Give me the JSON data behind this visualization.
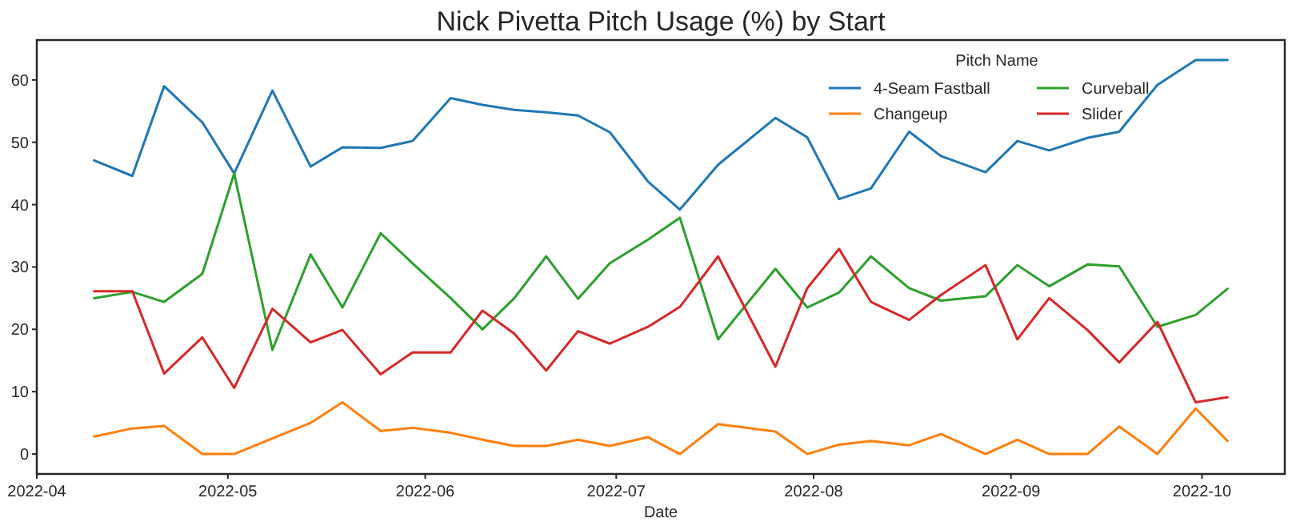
{
  "chart_data": {
    "type": "line",
    "title": "Nick Pivetta Pitch Usage (%) by Start",
    "xlabel": "Date",
    "legend_title": "Pitch Name",
    "legend": "top right",
    "grid": false,
    "x": [
      "2022-04-10",
      "2022-04-16",
      "2022-04-21",
      "2022-04-27",
      "2022-05-02",
      "2022-05-08",
      "2022-05-14",
      "2022-05-19",
      "2022-05-25",
      "2022-05-30",
      "2022-06-05",
      "2022-06-10",
      "2022-06-15",
      "2022-06-20",
      "2022-06-25",
      "2022-06-30",
      "2022-07-06",
      "2022-07-11",
      "2022-07-17",
      "2022-07-26",
      "2022-07-31",
      "2022-08-05",
      "2022-08-10",
      "2022-08-16",
      "2022-08-21",
      "2022-08-28",
      "2022-09-02",
      "2022-09-07",
      "2022-09-13",
      "2022-09-18",
      "2022-09-24",
      "2022-09-30",
      "2022-10-05"
    ],
    "xlim": [
      "2022-04-01",
      "2022-10-14"
    ],
    "xticks": [
      "2022-04",
      "2022-05",
      "2022-06",
      "2022-07",
      "2022-08",
      "2022-09",
      "2022-10"
    ],
    "ylim": [
      -3.2,
      66.4
    ],
    "yticks": [
      0,
      10,
      20,
      30,
      40,
      50,
      60
    ],
    "series": [
      {
        "name": "4-Seam Fastball",
        "color": "#1f77b4",
        "values": [
          47.1,
          44.6,
          59,
          53.2,
          45,
          58.3,
          46.1,
          49.2,
          49.1,
          50.2,
          57.1,
          56,
          55.2,
          54.8,
          54.3,
          51.6,
          43.7,
          39.2,
          46.4,
          53.9,
          50.8,
          40.9,
          42.6,
          51.7,
          47.8,
          45.2,
          50.2,
          48.7,
          50.7,
          51.7,
          59.2,
          63.2,
          63.2
        ]
      },
      {
        "name": "Changeup",
        "color": "#ff7f0e",
        "values": [
          2.8,
          4.1,
          4.5,
          0,
          0,
          2.5,
          5,
          8.3,
          3.7,
          4.2,
          3.4,
          2.3,
          1.3,
          1.3,
          2.3,
          1.3,
          2.7,
          0,
          4.8,
          3.6,
          0,
          1.5,
          2.1,
          1.4,
          3.2,
          0,
          2.3,
          0,
          0,
          4.4,
          0,
          7.3,
          2.1
        ]
      },
      {
        "name": "Curveball",
        "color": "#2ca02c",
        "values": [
          25,
          26,
          24.4,
          28.9,
          45,
          16.7,
          32,
          23.5,
          35.4,
          30.6,
          25,
          20,
          25,
          31.7,
          24.9,
          30.6,
          34.4,
          37.9,
          18.4,
          29.7,
          23.5,
          25.9,
          31.7,
          26.6,
          24.6,
          25.3,
          30.3,
          26.9,
          30.4,
          30.1,
          20.4,
          22.3,
          26.5
        ]
      },
      {
        "name": "Slider",
        "color": "#d62728",
        "values": [
          26.1,
          26.1,
          12.9,
          18.7,
          10.6,
          23.3,
          17.9,
          19.9,
          12.8,
          16.3,
          16.3,
          23,
          19.3,
          13.4,
          19.7,
          17.7,
          20.4,
          23.6,
          31.7,
          14,
          26.6,
          32.9,
          24.4,
          21.5,
          25.5,
          30.3,
          18.4,
          25,
          19.9,
          14.7,
          21.2,
          8.3,
          9.1
        ]
      }
    ]
  }
}
